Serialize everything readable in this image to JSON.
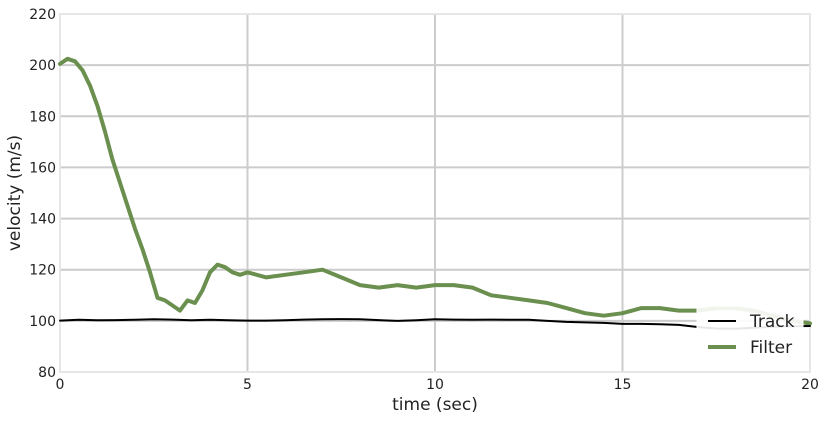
{
  "chart_data": {
    "type": "line",
    "title": "",
    "xlabel": "time (sec)",
    "ylabel": "velocity (m/s)",
    "xlim": [
      0,
      20
    ],
    "ylim": [
      80,
      220
    ],
    "xticks": [
      0,
      5,
      10,
      15,
      20
    ],
    "yticks": [
      80,
      100,
      120,
      140,
      160,
      180,
      200,
      220
    ],
    "xtick_labels": [
      "0",
      "5",
      "10",
      "15",
      "20"
    ],
    "ytick_labels": [
      "80",
      "100",
      "120",
      "140",
      "160",
      "180",
      "200",
      "220"
    ],
    "grid": true,
    "legend_position": "lower-right",
    "series": [
      {
        "name": "Track",
        "color": "#000000",
        "x": [
          0,
          0.5,
          1.0,
          1.5,
          2.0,
          2.5,
          3.0,
          3.5,
          4.0,
          4.5,
          5.0,
          5.5,
          6.0,
          6.5,
          7.0,
          7.5,
          8.0,
          8.5,
          9.0,
          9.5,
          10.0,
          10.5,
          11.0,
          11.5,
          12.0,
          12.5,
          13.0,
          13.5,
          14.0,
          14.5,
          15.0,
          15.5,
          16.0,
          16.5,
          17.0,
          17.5,
          18.0,
          18.5,
          19.0,
          19.5,
          20.0
        ],
        "y": [
          100.1,
          100.4,
          100.2,
          100.3,
          100.4,
          100.6,
          100.5,
          100.2,
          100.4,
          100.2,
          100.1,
          100.1,
          100.2,
          100.5,
          100.6,
          100.7,
          100.6,
          100.3,
          100.0,
          100.2,
          100.6,
          100.5,
          100.4,
          100.5,
          100.4,
          100.4,
          100.0,
          99.6,
          99.4,
          99.2,
          98.8,
          98.8,
          98.7,
          98.4,
          97.6,
          97.0,
          96.9,
          97.3,
          97.7,
          97.9,
          98.0
        ]
      },
      {
        "name": "Filter",
        "color": "#6a8f4e",
        "x": [
          0,
          0.2,
          0.4,
          0.6,
          0.8,
          1.0,
          1.2,
          1.4,
          1.6,
          1.8,
          2.0,
          2.2,
          2.4,
          2.6,
          2.8,
          3.0,
          3.2,
          3.4,
          3.6,
          3.8,
          4.0,
          4.2,
          4.4,
          4.6,
          4.8,
          5.0,
          5.5,
          6.0,
          6.5,
          7.0,
          7.5,
          8.0,
          8.5,
          9.0,
          9.5,
          10.0,
          10.5,
          11.0,
          11.5,
          12.0,
          12.5,
          13.0,
          13.5,
          14.0,
          14.5,
          15.0,
          15.5,
          16.0,
          16.5,
          17.0,
          17.5,
          18.0,
          18.5,
          19.0,
          19.5,
          20.0
        ],
        "y": [
          200.5,
          202.5,
          201.5,
          198,
          192,
          184,
          174,
          163,
          154,
          145,
          136,
          128,
          119,
          109,
          108,
          106,
          104,
          108,
          107,
          112,
          119,
          122,
          121,
          119,
          118,
          119,
          117,
          118,
          119,
          120,
          117,
          114,
          113,
          114,
          113,
          114,
          114,
          113,
          110,
          109,
          108,
          107,
          105,
          103,
          102,
          103,
          105,
          105,
          104,
          104,
          105,
          105,
          104,
          102,
          100,
          99
        ]
      }
    ]
  }
}
